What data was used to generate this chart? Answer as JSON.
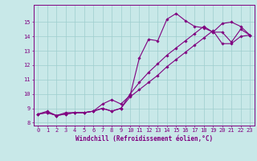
{
  "xlabel": "Windchill (Refroidissement éolien,°C)",
  "x_values": [
    0,
    1,
    2,
    3,
    4,
    5,
    6,
    7,
    8,
    9,
    10,
    11,
    12,
    13,
    14,
    15,
    16,
    17,
    18,
    19,
    20,
    21,
    22,
    23
  ],
  "line1": [
    8.6,
    8.8,
    8.5,
    8.7,
    8.7,
    8.7,
    8.8,
    9.3,
    9.6,
    9.3,
    9.9,
    12.5,
    13.8,
    13.7,
    15.2,
    15.6,
    15.1,
    14.7,
    14.6,
    14.3,
    14.9,
    15.0,
    14.7,
    14.1
  ],
  "line2": [
    8.6,
    8.7,
    8.5,
    8.6,
    8.7,
    8.7,
    8.8,
    9.0,
    8.8,
    9.0,
    10.0,
    10.8,
    11.5,
    12.1,
    12.7,
    13.2,
    13.7,
    14.2,
    14.7,
    14.3,
    14.3,
    13.6,
    14.5,
    14.1
  ],
  "line3": [
    8.6,
    8.7,
    8.5,
    8.6,
    8.7,
    8.7,
    8.8,
    9.0,
    8.8,
    9.0,
    9.8,
    10.3,
    10.8,
    11.3,
    11.9,
    12.4,
    12.9,
    13.4,
    13.9,
    14.4,
    13.5,
    13.5,
    14.0,
    14.1
  ],
  "line_color": "#800080",
  "bg_color": "#c8e8e8",
  "grid_color": "#9ecece",
  "ylim": [
    7.8,
    16.2
  ],
  "xlim": [
    -0.5,
    23.5
  ],
  "yticks": [
    8,
    9,
    10,
    11,
    12,
    13,
    14,
    15
  ],
  "xticks": [
    0,
    1,
    2,
    3,
    4,
    5,
    6,
    7,
    8,
    9,
    10,
    11,
    12,
    13,
    14,
    15,
    16,
    17,
    18,
    19,
    20,
    21,
    22,
    23
  ],
  "tick_fontsize": 5.0,
  "xlabel_fontsize": 5.5,
  "marker": "D",
  "marker_size": 1.8,
  "linewidth": 0.8
}
